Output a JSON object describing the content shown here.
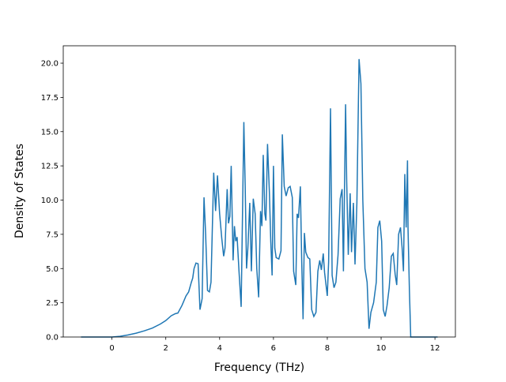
{
  "chart_data": {
    "type": "line",
    "x_label": "Frequency (THz)",
    "y_label": "Density of States",
    "x": [
      -1.15,
      0,
      0.3,
      0.6,
      0.9,
      1.2,
      1.5,
      1.8,
      2.0,
      2.2,
      2.35,
      2.45,
      2.6,
      2.75,
      2.85,
      2.95,
      3.0,
      3.05,
      3.12,
      3.2,
      3.27,
      3.35,
      3.42,
      3.48,
      3.55,
      3.62,
      3.68,
      3.78,
      3.85,
      3.92,
      4.0,
      4.08,
      4.15,
      4.2,
      4.28,
      4.33,
      4.38,
      4.43,
      4.5,
      4.55,
      4.6,
      4.65,
      4.72,
      4.8,
      4.9,
      4.95,
      5.0,
      5.05,
      5.12,
      5.18,
      5.25,
      5.32,
      5.38,
      5.45,
      5.52,
      5.57,
      5.62,
      5.68,
      5.72,
      5.78,
      5.85,
      5.9,
      5.95,
      6.0,
      6.05,
      6.1,
      6.2,
      6.28,
      6.33,
      6.4,
      6.47,
      6.55,
      6.62,
      6.7,
      6.75,
      6.83,
      6.88,
      6.93,
      7.0,
      7.05,
      7.1,
      7.15,
      7.2,
      7.28,
      7.35,
      7.42,
      7.5,
      7.58,
      7.65,
      7.72,
      7.78,
      7.85,
      7.9,
      8.0,
      8.05,
      8.12,
      8.18,
      8.25,
      8.32,
      8.4,
      8.48,
      8.55,
      8.6,
      8.68,
      8.72,
      8.78,
      8.85,
      8.9,
      8.97,
      9.03,
      9.1,
      9.18,
      9.25,
      9.32,
      9.4,
      9.48,
      9.55,
      9.62,
      9.72,
      9.82,
      9.88,
      9.95,
      10.02,
      10.08,
      10.15,
      10.22,
      10.3,
      10.38,
      10.45,
      10.52,
      10.58,
      10.65,
      10.72,
      10.78,
      10.83,
      10.88,
      10.93,
      10.98,
      11.0,
      11.05,
      11.1,
      12.1
    ],
    "series": [
      {
        "color": "#1f77b4",
        "values": [
          0,
          0,
          0.05,
          0.15,
          0.28,
          0.45,
          0.65,
          0.95,
          1.2,
          1.55,
          1.7,
          1.75,
          2.3,
          3.0,
          3.3,
          4.0,
          4.3,
          5.0,
          5.4,
          5.35,
          2.0,
          2.8,
          10.2,
          7.5,
          3.4,
          3.3,
          4.0,
          12.0,
          9.2,
          11.8,
          9.0,
          7.2,
          5.9,
          6.5,
          10.8,
          8.3,
          8.8,
          12.5,
          5.6,
          8.1,
          7.0,
          7.3,
          4.8,
          2.2,
          15.7,
          11.0,
          5.0,
          6.5,
          9.8,
          4.8,
          10.1,
          9.0,
          5.0,
          2.9,
          9.2,
          8.1,
          13.3,
          9.0,
          8.5,
          14.1,
          10.5,
          7.0,
          4.5,
          12.5,
          6.5,
          5.8,
          5.7,
          6.3,
          14.8,
          11.0,
          10.3,
          10.9,
          11.0,
          10.2,
          4.8,
          3.8,
          9.0,
          8.7,
          11.0,
          5.5,
          1.3,
          7.6,
          6.2,
          5.8,
          5.7,
          2.0,
          1.5,
          1.8,
          4.8,
          5.6,
          4.9,
          6.1,
          4.7,
          3.0,
          5.5,
          16.7,
          4.5,
          3.6,
          4.0,
          6.0,
          10.1,
          10.8,
          4.8,
          17.0,
          11.5,
          6.0,
          10.5,
          6.2,
          9.8,
          5.3,
          9.8,
          20.3,
          18.5,
          10.0,
          5.0,
          4.0,
          0.6,
          1.8,
          2.5,
          4.0,
          8.0,
          8.5,
          7.0,
          2.0,
          1.5,
          2.3,
          3.6,
          5.9,
          6.1,
          4.6,
          3.8,
          7.5,
          8.0,
          6.5,
          4.8,
          11.9,
          8.0,
          12.9,
          7.9,
          3.5,
          0,
          0
        ]
      }
    ],
    "xlim": [
      -1.81,
      12.76
    ],
    "ylim": [
      0,
      21.27
    ],
    "xticks": [
      0,
      2,
      4,
      6,
      8,
      10,
      12
    ],
    "yticks": [
      {
        "value": 0,
        "label": "0.0"
      },
      {
        "value": 2.5,
        "label": "2.5"
      },
      {
        "value": 5,
        "label": "5.0"
      },
      {
        "value": 7.5,
        "label": "7.5"
      },
      {
        "value": 10,
        "label": "10.0"
      },
      {
        "value": 12.5,
        "label": "12.5"
      },
      {
        "value": 15,
        "label": "15.0"
      },
      {
        "value": 17.5,
        "label": "17.5"
      },
      {
        "value": 20,
        "label": "20.0"
      }
    ]
  }
}
